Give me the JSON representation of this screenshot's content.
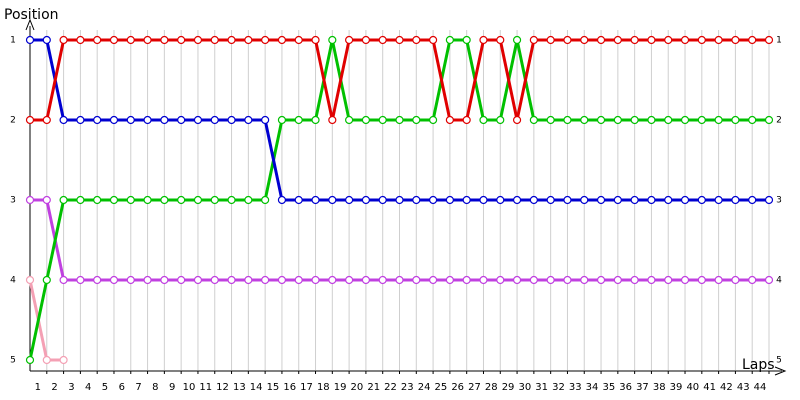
{
  "chart_data": {
    "type": "line",
    "y_title": "Position",
    "x_title": "Laps",
    "x": [
      0,
      1,
      2,
      3,
      4,
      5,
      6,
      7,
      8,
      9,
      10,
      11,
      12,
      13,
      14,
      15,
      16,
      17,
      18,
      19,
      20,
      21,
      22,
      23,
      24,
      25,
      26,
      27,
      28,
      29,
      30,
      31,
      32,
      33,
      34,
      35,
      36,
      37,
      38,
      39,
      40,
      41,
      42,
      43,
      44
    ],
    "xlim": [
      0,
      44
    ],
    "xticks": [
      1,
      2,
      3,
      4,
      5,
      6,
      7,
      8,
      9,
      10,
      11,
      12,
      13,
      14,
      15,
      16,
      17,
      18,
      19,
      20,
      21,
      22,
      23,
      24,
      25,
      26,
      27,
      28,
      29,
      30,
      31,
      32,
      33,
      34,
      35,
      36,
      37,
      38,
      39,
      40,
      41,
      42,
      43,
      44
    ],
    "ylim": [
      5,
      1
    ],
    "yticks": [
      1,
      2,
      3,
      4,
      5
    ],
    "grid": true,
    "series": [
      {
        "color": "#f4a0b4",
        "values": [
          4,
          5,
          5,
          null,
          null,
          null,
          null,
          null,
          null,
          null,
          null,
          null,
          null,
          null,
          null,
          null,
          null,
          null,
          null,
          null,
          null,
          null,
          null,
          null,
          null,
          null,
          null,
          null,
          null,
          null,
          null,
          null,
          null,
          null,
          null,
          null,
          null,
          null,
          null,
          null,
          null,
          null,
          null,
          null,
          null
        ]
      },
      {
        "color": "#c040e0",
        "values": [
          3,
          3,
          4,
          4,
          4,
          4,
          4,
          4,
          4,
          4,
          4,
          4,
          4,
          4,
          4,
          4,
          4,
          4,
          4,
          4,
          4,
          4,
          4,
          4,
          4,
          4,
          4,
          4,
          4,
          4,
          4,
          4,
          4,
          4,
          4,
          4,
          4,
          4,
          4,
          4,
          4,
          4,
          4,
          4,
          4
        ]
      },
      {
        "color": "#00c000",
        "values": [
          5,
          4,
          3,
          3,
          3,
          3,
          3,
          3,
          3,
          3,
          3,
          3,
          3,
          3,
          3,
          2,
          2,
          2,
          1,
          2,
          2,
          2,
          2,
          2,
          2,
          1,
          1,
          2,
          2,
          1,
          2,
          2,
          2,
          2,
          2,
          2,
          2,
          2,
          2,
          2,
          2,
          2,
          2,
          2,
          2
        ]
      },
      {
        "color": "#0000d0",
        "values": [
          1,
          1,
          2,
          2,
          2,
          2,
          2,
          2,
          2,
          2,
          2,
          2,
          2,
          2,
          2,
          3,
          3,
          3,
          3,
          3,
          3,
          3,
          3,
          3,
          3,
          3,
          3,
          3,
          3,
          3,
          3,
          3,
          3,
          3,
          3,
          3,
          3,
          3,
          3,
          3,
          3,
          3,
          3,
          3,
          3
        ]
      },
      {
        "color": "#e00000",
        "values": [
          2,
          2,
          1,
          1,
          1,
          1,
          1,
          1,
          1,
          1,
          1,
          1,
          1,
          1,
          1,
          1,
          1,
          1,
          2,
          1,
          1,
          1,
          1,
          1,
          1,
          2,
          2,
          1,
          1,
          2,
          1,
          1,
          1,
          1,
          1,
          1,
          1,
          1,
          1,
          1,
          1,
          1,
          1,
          1,
          1
        ]
      }
    ]
  }
}
